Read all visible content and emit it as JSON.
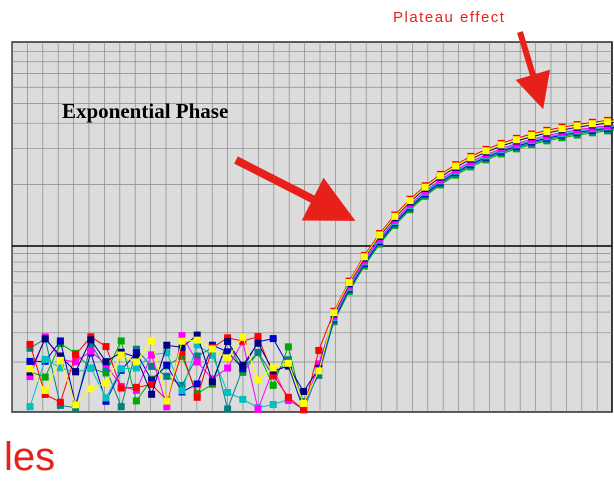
{
  "annotations": {
    "plateau": "Plateau effect",
    "exponential": "Exponential Phase",
    "bottom_text": "les"
  }
}
